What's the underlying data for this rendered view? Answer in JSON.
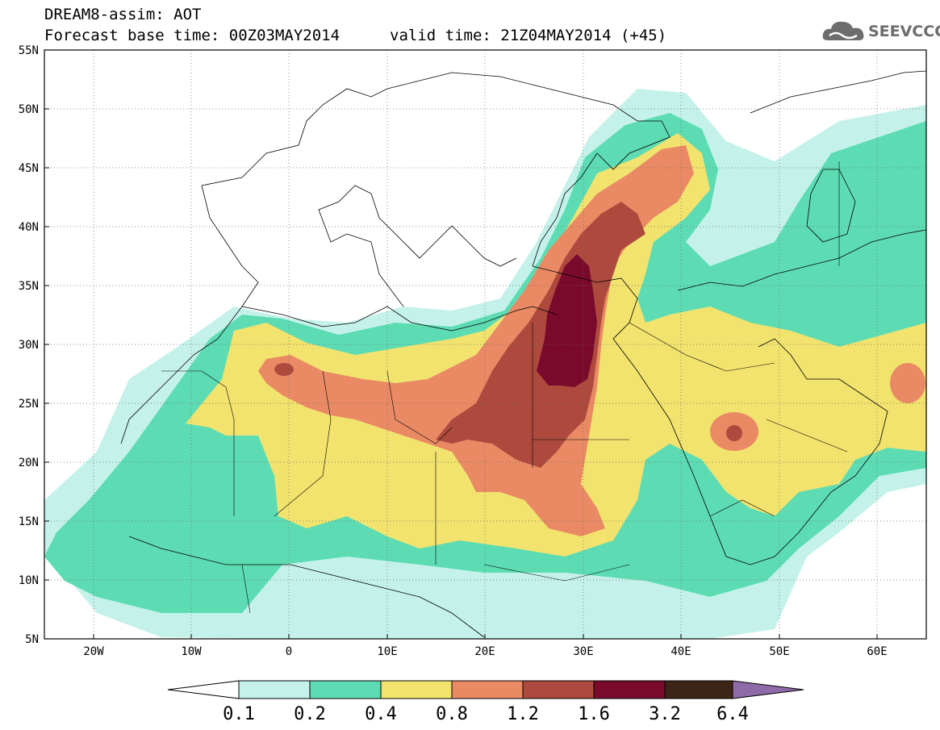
{
  "header": {
    "line1": "DREAM8-assim: AOT",
    "line2": "Forecast base time: 00Z03MAY2014",
    "valid": "valid time: 21Z04MAY2014 (+45)"
  },
  "logo": {
    "text": "SEEVCCC",
    "icon": "cloud-icon"
  },
  "map": {
    "lat_labels": [
      "55N",
      "50N",
      "45N",
      "40N",
      "35N",
      "30N",
      "25N",
      "20N",
      "15N",
      "10N",
      "5N"
    ],
    "lon_labels": [
      "20W",
      "10W",
      "0",
      "10E",
      "20E",
      "30E",
      "40E",
      "50E",
      "60E"
    ],
    "lat_range": [
      5,
      55
    ],
    "lon_range": [
      -25,
      65
    ],
    "grid": "dotted"
  },
  "colorbar": {
    "levels": [
      "0.1",
      "0.2",
      "0.4",
      "0.8",
      "1.2",
      "1.6",
      "3.2",
      "6.4"
    ],
    "colors": [
      "#c4f2ea",
      "#5ddcb4",
      "#f2e36e",
      "#e98a65",
      "#ad4a3d",
      "#7a0a2c",
      "#3e2416",
      "#8f6aa8"
    ]
  },
  "palette": {
    "c01": "#c4f2ea",
    "c02": "#5ddcb4",
    "c04": "#f2e36e",
    "c08": "#e98a65",
    "c12": "#ad4a3d",
    "c16": "#7a0a2c"
  }
}
